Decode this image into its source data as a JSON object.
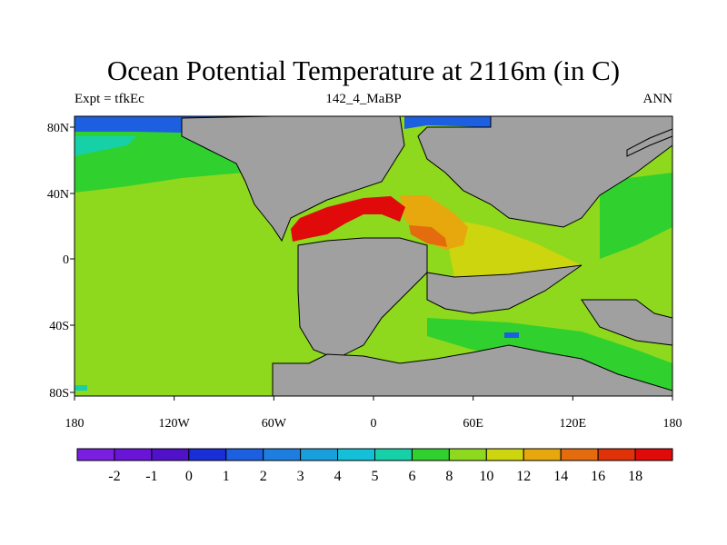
{
  "title": "Ocean Potential Temperature at 2116m (in C)",
  "left_string": "Expt = tfkEc",
  "center_string": "142_4_MaBP",
  "right_string": "ANN",
  "x_ticks": [
    "180",
    "120W",
    "60W",
    "0",
    "60E",
    "120E",
    "180"
  ],
  "y_ticks": [
    "80N",
    "40N",
    "0",
    "40S",
    "80S"
  ],
  "colorbar": {
    "labels": [
      "-2",
      "-1",
      "0",
      "1",
      "2",
      "3",
      "4",
      "5",
      "6",
      "8",
      "10",
      "12",
      "14",
      "16",
      "18"
    ],
    "colors": [
      "#7a1fe0",
      "#6a14d8",
      "#5012c8",
      "#1a2ed8",
      "#1c5fe0",
      "#1e7ee0",
      "#19a0dc",
      "#14bfd8",
      "#16d0a8",
      "#30d02e",
      "#8ed81e",
      "#cdd50e",
      "#e6a80c",
      "#e46c0e",
      "#e03208",
      "#e00a0a"
    ]
  },
  "colors": {
    "land": "#a0a0a0",
    "ocean_default": "#8ed81e"
  }
}
